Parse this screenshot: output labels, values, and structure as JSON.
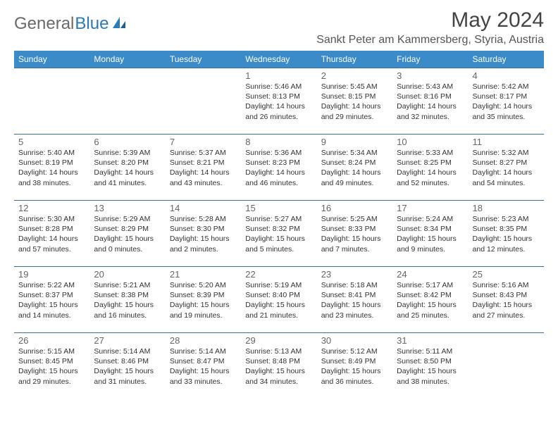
{
  "brand": {
    "text1": "General",
    "text2": "Blue"
  },
  "title": "May 2024",
  "location": "Sankt Peter am Kammersberg, Styria, Austria",
  "colors": {
    "header_bg": "#3b8bc9",
    "header_text": "#ffffff",
    "row_border": "#3b6fa0",
    "brand_gray": "#6a6a6a",
    "brand_blue": "#2a7ab9"
  },
  "weekdays": [
    "Sunday",
    "Monday",
    "Tuesday",
    "Wednesday",
    "Thursday",
    "Friday",
    "Saturday"
  ],
  "weeks": [
    [
      {
        "empty": true
      },
      {
        "empty": true
      },
      {
        "empty": true
      },
      {
        "day": "1",
        "sunrise": "Sunrise: 5:46 AM",
        "sunset": "Sunset: 8:13 PM",
        "daylight": "Daylight: 14 hours and 26 minutes."
      },
      {
        "day": "2",
        "sunrise": "Sunrise: 5:45 AM",
        "sunset": "Sunset: 8:15 PM",
        "daylight": "Daylight: 14 hours and 29 minutes."
      },
      {
        "day": "3",
        "sunrise": "Sunrise: 5:43 AM",
        "sunset": "Sunset: 8:16 PM",
        "daylight": "Daylight: 14 hours and 32 minutes."
      },
      {
        "day": "4",
        "sunrise": "Sunrise: 5:42 AM",
        "sunset": "Sunset: 8:17 PM",
        "daylight": "Daylight: 14 hours and 35 minutes."
      }
    ],
    [
      {
        "day": "5",
        "sunrise": "Sunrise: 5:40 AM",
        "sunset": "Sunset: 8:19 PM",
        "daylight": "Daylight: 14 hours and 38 minutes."
      },
      {
        "day": "6",
        "sunrise": "Sunrise: 5:39 AM",
        "sunset": "Sunset: 8:20 PM",
        "daylight": "Daylight: 14 hours and 41 minutes."
      },
      {
        "day": "7",
        "sunrise": "Sunrise: 5:37 AM",
        "sunset": "Sunset: 8:21 PM",
        "daylight": "Daylight: 14 hours and 43 minutes."
      },
      {
        "day": "8",
        "sunrise": "Sunrise: 5:36 AM",
        "sunset": "Sunset: 8:23 PM",
        "daylight": "Daylight: 14 hours and 46 minutes."
      },
      {
        "day": "9",
        "sunrise": "Sunrise: 5:34 AM",
        "sunset": "Sunset: 8:24 PM",
        "daylight": "Daylight: 14 hours and 49 minutes."
      },
      {
        "day": "10",
        "sunrise": "Sunrise: 5:33 AM",
        "sunset": "Sunset: 8:25 PM",
        "daylight": "Daylight: 14 hours and 52 minutes."
      },
      {
        "day": "11",
        "sunrise": "Sunrise: 5:32 AM",
        "sunset": "Sunset: 8:27 PM",
        "daylight": "Daylight: 14 hours and 54 minutes."
      }
    ],
    [
      {
        "day": "12",
        "sunrise": "Sunrise: 5:30 AM",
        "sunset": "Sunset: 8:28 PM",
        "daylight": "Daylight: 14 hours and 57 minutes."
      },
      {
        "day": "13",
        "sunrise": "Sunrise: 5:29 AM",
        "sunset": "Sunset: 8:29 PM",
        "daylight": "Daylight: 15 hours and 0 minutes."
      },
      {
        "day": "14",
        "sunrise": "Sunrise: 5:28 AM",
        "sunset": "Sunset: 8:30 PM",
        "daylight": "Daylight: 15 hours and 2 minutes."
      },
      {
        "day": "15",
        "sunrise": "Sunrise: 5:27 AM",
        "sunset": "Sunset: 8:32 PM",
        "daylight": "Daylight: 15 hours and 5 minutes."
      },
      {
        "day": "16",
        "sunrise": "Sunrise: 5:25 AM",
        "sunset": "Sunset: 8:33 PM",
        "daylight": "Daylight: 15 hours and 7 minutes."
      },
      {
        "day": "17",
        "sunrise": "Sunrise: 5:24 AM",
        "sunset": "Sunset: 8:34 PM",
        "daylight": "Daylight: 15 hours and 9 minutes."
      },
      {
        "day": "18",
        "sunrise": "Sunrise: 5:23 AM",
        "sunset": "Sunset: 8:35 PM",
        "daylight": "Daylight: 15 hours and 12 minutes."
      }
    ],
    [
      {
        "day": "19",
        "sunrise": "Sunrise: 5:22 AM",
        "sunset": "Sunset: 8:37 PM",
        "daylight": "Daylight: 15 hours and 14 minutes."
      },
      {
        "day": "20",
        "sunrise": "Sunrise: 5:21 AM",
        "sunset": "Sunset: 8:38 PM",
        "daylight": "Daylight: 15 hours and 16 minutes."
      },
      {
        "day": "21",
        "sunrise": "Sunrise: 5:20 AM",
        "sunset": "Sunset: 8:39 PM",
        "daylight": "Daylight: 15 hours and 19 minutes."
      },
      {
        "day": "22",
        "sunrise": "Sunrise: 5:19 AM",
        "sunset": "Sunset: 8:40 PM",
        "daylight": "Daylight: 15 hours and 21 minutes."
      },
      {
        "day": "23",
        "sunrise": "Sunrise: 5:18 AM",
        "sunset": "Sunset: 8:41 PM",
        "daylight": "Daylight: 15 hours and 23 minutes."
      },
      {
        "day": "24",
        "sunrise": "Sunrise: 5:17 AM",
        "sunset": "Sunset: 8:42 PM",
        "daylight": "Daylight: 15 hours and 25 minutes."
      },
      {
        "day": "25",
        "sunrise": "Sunrise: 5:16 AM",
        "sunset": "Sunset: 8:43 PM",
        "daylight": "Daylight: 15 hours and 27 minutes."
      }
    ],
    [
      {
        "day": "26",
        "sunrise": "Sunrise: 5:15 AM",
        "sunset": "Sunset: 8:45 PM",
        "daylight": "Daylight: 15 hours and 29 minutes."
      },
      {
        "day": "27",
        "sunrise": "Sunrise: 5:14 AM",
        "sunset": "Sunset: 8:46 PM",
        "daylight": "Daylight: 15 hours and 31 minutes."
      },
      {
        "day": "28",
        "sunrise": "Sunrise: 5:14 AM",
        "sunset": "Sunset: 8:47 PM",
        "daylight": "Daylight: 15 hours and 33 minutes."
      },
      {
        "day": "29",
        "sunrise": "Sunrise: 5:13 AM",
        "sunset": "Sunset: 8:48 PM",
        "daylight": "Daylight: 15 hours and 34 minutes."
      },
      {
        "day": "30",
        "sunrise": "Sunrise: 5:12 AM",
        "sunset": "Sunset: 8:49 PM",
        "daylight": "Daylight: 15 hours and 36 minutes."
      },
      {
        "day": "31",
        "sunrise": "Sunrise: 5:11 AM",
        "sunset": "Sunset: 8:50 PM",
        "daylight": "Daylight: 15 hours and 38 minutes."
      },
      {
        "empty": true
      }
    ]
  ]
}
